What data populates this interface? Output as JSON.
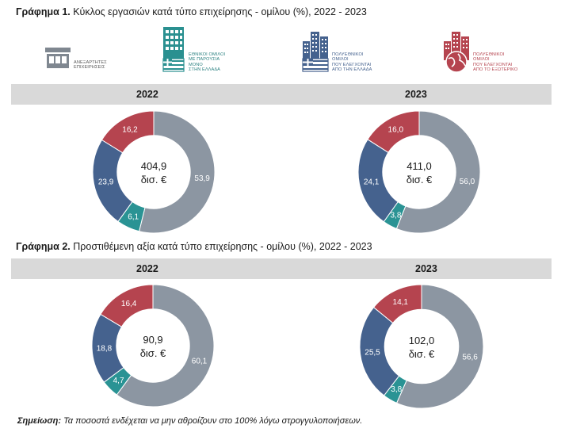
{
  "chart1": {
    "title_bold": "Γράφημα 1.",
    "title_rest": " Κύκλος εργασιών κατά τύπο επιχείρησης - ομίλου (%), 2022 - 2023"
  },
  "chart2": {
    "title_bold": "Γράφημα 2.",
    "title_rest": " Προστιθέμενη αξία κατά τύπο επιχείρησης - ομίλου (%), 2022 - 2023"
  },
  "legend": [
    {
      "label": "ΑΝΕΞΑΡΤΗΤΕΣ\nΕΠΙΧΕΙΡΗΣΕΙΣ",
      "icon": "building-icon",
      "color": "#7f8790"
    },
    {
      "label": "ΕΘΝΙΚΟΙ ΟΜΙΛΟΙ\nΜΕ ΠΑΡΟΥΣΙΑ\nΜΟΝΟ\nΣΤΗΝ ΕΛΛΑΔΑ",
      "icon": "greek-building-icon",
      "color": "#2a9090"
    },
    {
      "label": "ΠΟΛΥΕΘΝΙΚΟΙ\nΟΜΙΛΟΙ\nΠΟΥ ΕΛΕΓΧΟΝΤΑΙ\nΑΠΟ ΤΗΝ ΕΛΛΑΔΑ",
      "icon": "city-greece-icon",
      "color": "#45628e"
    },
    {
      "label": "ΠΟΛΥΕΘΝΙΚΟΙ\nΟΜΙΛΟΙ\nΠΟΥ ΕΛΕΓΧΟΝΤΑΙ\nΑΠΟ ΤΟ ΕΞΩΤΕΡΙΚΟ",
      "icon": "city-globe-icon",
      "color": "#b5444f"
    }
  ],
  "note_bold": "Σημείωση:",
  "note_rest": " Τα ποσοστά ενδέχεται να μην αθροίζουν στο 100% λόγω στρογγυλοποιήσεων.",
  "colors": {
    "independent": "#8c96a2",
    "national": "#2a9394",
    "multi_greek": "#45628e",
    "multi_foreign": "#b5444f"
  },
  "chart_data": [
    {
      "type": "pie",
      "title": "Γράφημα 1. Κύκλος εργασιών κατά τύπο επιχείρησης - ομίλου (%), 2022 - 2023",
      "year": "2022",
      "center_value": "404,9",
      "center_unit": "δισ. €",
      "slices": [
        {
          "category": "Ανεξάρτητες επιχειρήσεις",
          "value": 53.9,
          "label": "53,9"
        },
        {
          "category": "Εθνικοί όμιλοι με παρουσία μόνο στην Ελλάδα",
          "value": 6.1,
          "label": "6,1"
        },
        {
          "category": "Πολυεθνικοί όμιλοι που ελέγχονται από την Ελλάδα",
          "value": 23.9,
          "label": "23,9"
        },
        {
          "category": "Πολυεθνικοί όμιλοι που ελέγχονται από το εξωτερικό",
          "value": 16.2,
          "label": "16,2"
        }
      ]
    },
    {
      "type": "pie",
      "title": "Γράφημα 1. Κύκλος εργασιών κατά τύπο επιχείρησης - ομίλου (%), 2022 - 2023",
      "year": "2023",
      "center_value": "411,0",
      "center_unit": "δισ. €",
      "slices": [
        {
          "category": "Ανεξάρτητες επιχειρήσεις",
          "value": 56.0,
          "label": "56,0"
        },
        {
          "category": "Εθνικοί όμιλοι με παρουσία μόνο στην Ελλάδα",
          "value": 3.8,
          "label": "3,8"
        },
        {
          "category": "Πολυεθνικοί όμιλοι που ελέγχονται από την Ελλάδα",
          "value": 24.1,
          "label": "24,1"
        },
        {
          "category": "Πολυεθνικοί όμιλοι που ελέγχονται από το εξωτερικό",
          "value": 16.0,
          "label": "16,0"
        }
      ]
    },
    {
      "type": "pie",
      "title": "Γράφημα 2. Προστιθέμενη αξία κατά τύπο επιχείρησης - ομίλου (%), 2022 - 2023",
      "year": "2022",
      "center_value": "90,9",
      "center_unit": "δισ. €",
      "slices": [
        {
          "category": "Ανεξάρτητες επιχειρήσεις",
          "value": 60.1,
          "label": "60,1"
        },
        {
          "category": "Εθνικοί όμιλοι με παρουσία μόνο στην Ελλάδα",
          "value": 4.7,
          "label": "4,7"
        },
        {
          "category": "Πολυεθνικοί όμιλοι που ελέγχονται από την Ελλάδα",
          "value": 18.8,
          "label": "18,8"
        },
        {
          "category": "Πολυεθνικοί όμιλοι που ελέγχονται από το εξωτερικό",
          "value": 16.4,
          "label": "16,4"
        }
      ]
    },
    {
      "type": "pie",
      "title": "Γράφημα 2. Προστιθέμενη αξία κατά τύπο επιχείρησης - ομίλου (%), 2022 - 2023",
      "year": "2023",
      "center_value": "102,0",
      "center_unit": "δισ. €",
      "slices": [
        {
          "category": "Ανεξάρτητες επιχειρήσεις",
          "value": 56.6,
          "label": "56,6"
        },
        {
          "category": "Εθνικοί όμιλοι με παρουσία μόνο στην Ελλάδα",
          "value": 3.8,
          "label": "3,8"
        },
        {
          "category": "Πολυεθνικοί όμιλοι που ελέγχονται από την Ελλάδα",
          "value": 25.5,
          "label": "25,5"
        },
        {
          "category": "Πολυεθνικοί όμιλοι που ελέγχονται από το εξωτερικό",
          "value": 14.1,
          "label": "14,1"
        }
      ]
    }
  ]
}
